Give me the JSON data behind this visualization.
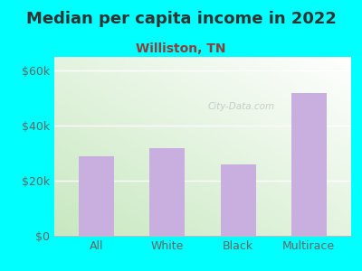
{
  "title": "Median per capita income in 2022",
  "subtitle": "Williston, TN",
  "categories": [
    "All",
    "White",
    "Black",
    "Multirace"
  ],
  "values": [
    29000,
    32000,
    26000,
    52000
  ],
  "bar_color": "#c9aee0",
  "background_color": "#00ffff",
  "plot_bg_color_bottom_left": "#c8e8c0",
  "plot_bg_color_top_right": "#ffffff",
  "title_color": "#333333",
  "subtitle_color": "#8b4040",
  "tick_label_color": "#666666",
  "ytick_labels": [
    "$0",
    "$20k",
    "$40k",
    "$60k"
  ],
  "ytick_values": [
    0,
    20000,
    40000,
    60000
  ],
  "ylim": [
    0,
    65000
  ],
  "xlim_left": -0.6,
  "xlim_right": 3.6,
  "title_fontsize": 13,
  "subtitle_fontsize": 10,
  "tick_fontsize": 9,
  "watermark": "City-Data.com",
  "bar_width": 0.5
}
